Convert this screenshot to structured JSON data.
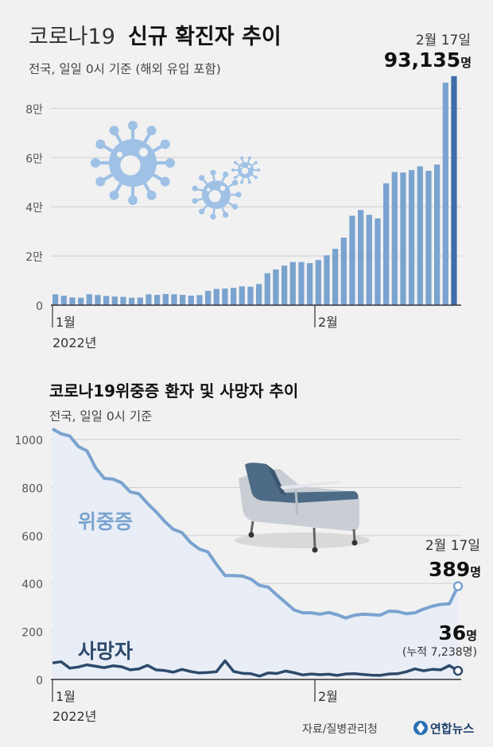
{
  "header": {
    "title_light": "코로나19",
    "title_bold": "신규 확진자 추이",
    "subtitle": "전국, 일일 0시 기준 (해외 유입 포함)"
  },
  "section2": {
    "title": "코로나19위중증 환자 및 사망자 추이",
    "subtitle": "전국, 일일 0시 기준"
  },
  "footer": {
    "source": "자료/질병관리청",
    "brand": "연합뉴스"
  },
  "colors": {
    "background": "#f1f1f1",
    "bar": "#7aa3cf",
    "bar_highlight": "#3f6da6",
    "critical_line": "#7aa3cf",
    "critical_area": "#e9eef6",
    "death_line": "#2d4a6b",
    "virus": "#9fc1e6",
    "bed": "#4d6b86"
  },
  "chart_data": [
    {
      "type": "bar",
      "title": "코로나19 신규 확진자 추이",
      "subtitle": "전국, 일일 0시 기준 (해외 유입 포함)",
      "x_tick_labels": [
        "1월",
        "2월"
      ],
      "x_year_label": "2022년",
      "y_tick_labels": [
        "0",
        "2만",
        "4만",
        "6만",
        "8만"
      ],
      "y_ticks": [
        0,
        20000,
        40000,
        60000,
        80000
      ],
      "ylim": [
        0,
        95000
      ],
      "grid": true,
      "start_date": "2022-01-01",
      "end_date": "2022-02-17",
      "values": [
        4412,
        3832,
        3125,
        3022,
        4439,
        4125,
        3719,
        3508,
        3371,
        3005,
        3094,
        4385,
        4167,
        4538,
        4423,
        4193,
        3855,
        4071,
        5805,
        6601,
        6768,
        7008,
        7625,
        7512,
        8570,
        13007,
        14514,
        16093,
        17513,
        17528,
        17079,
        18342,
        20269,
        22907,
        27443,
        36345,
        38689,
        36715,
        35286,
        49567,
        54121,
        53926,
        54939,
        56431,
        54619,
        57177,
        90443,
        93135
      ],
      "highlight": {
        "date": "2월 17일",
        "value": 93135,
        "label": "93,135",
        "unit": "명"
      }
    },
    {
      "type": "line",
      "title": "코로나19위중증 환자 및 사망자 추이",
      "subtitle": "전국, 일일 0시 기준",
      "x_tick_labels": [
        "1월",
        "2월"
      ],
      "x_year_label": "2022년",
      "y_ticks": [
        0,
        200,
        400,
        600,
        800,
        1000
      ],
      "ylim": [
        0,
        1060
      ],
      "grid": true,
      "start_date": "2022-01-01",
      "end_date": "2022-02-17",
      "series": [
        {
          "name": "위중증",
          "values": [
            1044,
            1024,
            1015,
            971,
            953,
            882,
            838,
            835,
            820,
            782,
            774,
            734,
            699,
            659,
            626,
            612,
            571,
            544,
            532,
            480,
            433,
            433,
            431,
            418,
            392,
            385,
            352,
            321,
            290,
            278,
            278,
            272,
            279,
            270,
            256,
            268,
            272,
            270,
            268,
            285,
            283,
            274,
            278,
            293,
            305,
            313,
            315,
            389
          ],
          "end_label": "389",
          "unit": "명"
        },
        {
          "name": "사망자",
          "values": [
            69,
            74,
            47,
            52,
            61,
            55,
            49,
            57,
            53,
            40,
            44,
            59,
            40,
            37,
            30,
            42,
            33,
            27,
            29,
            32,
            78,
            33,
            26,
            24,
            14,
            27,
            25,
            35,
            28,
            19,
            23,
            20,
            22,
            17,
            23,
            24,
            21,
            18,
            17,
            23,
            24,
            32,
            44,
            36,
            42,
            40,
            58,
            36
          ],
          "end_label": "36",
          "unit": "명",
          "cumulative_note": "(누적 7,238명)"
        }
      ],
      "end_date_label": "2월 17일"
    }
  ]
}
